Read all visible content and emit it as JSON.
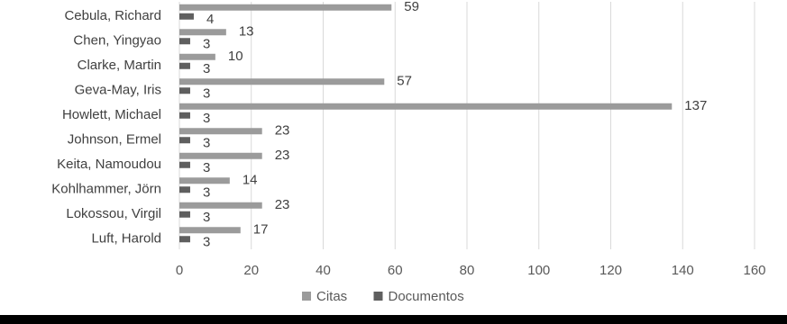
{
  "chart_data": {
    "type": "bar",
    "orientation": "horizontal",
    "categories": [
      "Cebula, Richard",
      "Chen, Yingyao",
      "Clarke, Martin",
      "Geva-May, Iris",
      "Howlett, Michael",
      "Johnson, Ermel",
      "Keita, Namoudou",
      "Kohlhammer, Jörn",
      "Lokossou, Virgil",
      "Luft, Harold"
    ],
    "series": [
      {
        "name": "Citas",
        "color": "#9b9b9b",
        "values": [
          59,
          13,
          10,
          57,
          137,
          23,
          23,
          14,
          23,
          17
        ]
      },
      {
        "name": "Documentos",
        "color": "#5f5f5f",
        "values": [
          4,
          3,
          3,
          3,
          3,
          3,
          3,
          3,
          3,
          3
        ]
      }
    ],
    "xlim": [
      0,
      160
    ],
    "xticks": [
      0,
      20,
      40,
      60,
      80,
      100,
      120,
      140,
      160
    ],
    "grid": true,
    "legend_position": "bottom",
    "title": "",
    "xlabel": "",
    "ylabel": ""
  }
}
